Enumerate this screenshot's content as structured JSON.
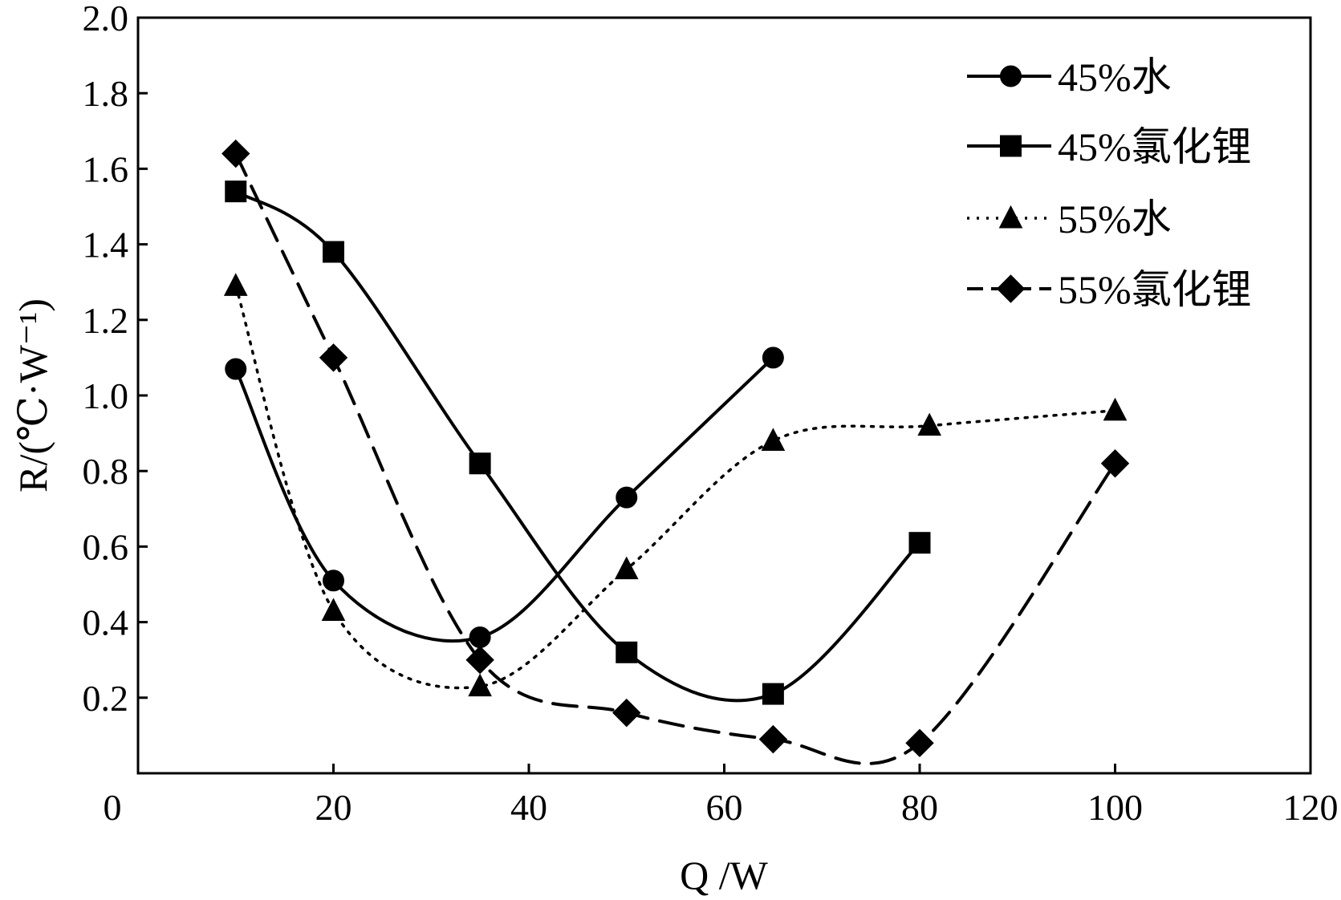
{
  "chart_data": {
    "type": "line",
    "xlabel": "Q /W",
    "ylabel": "R/(℃·W⁻¹)",
    "xlim": [
      0,
      120
    ],
    "ylim": [
      0,
      2.0
    ],
    "x_ticks": [
      0,
      20,
      40,
      60,
      80,
      100,
      120
    ],
    "y_ticks": [
      0.2,
      0.4,
      0.6,
      0.8,
      1.0,
      1.2,
      1.4,
      1.6,
      1.8,
      2.0
    ],
    "x_tick_labels": [
      "0",
      "20",
      "40",
      "60",
      "80",
      "100",
      "120"
    ],
    "y_tick_labels": [
      "0.2",
      "0.4",
      "0.6",
      "0.8",
      "1.0",
      "1.2",
      "1.4",
      "1.6",
      "1.8",
      "2.0"
    ],
    "grid": false,
    "legend_position": "top-right",
    "series": [
      {
        "name": "45%水",
        "marker": "circle",
        "line_style": "solid",
        "color": "#000000",
        "points": [
          [
            10,
            1.07
          ],
          [
            20,
            0.51
          ],
          [
            35,
            0.36
          ],
          [
            50,
            0.73
          ],
          [
            65,
            1.1
          ]
        ]
      },
      {
        "name": "45%氯化锂",
        "marker": "square",
        "line_style": "solid",
        "color": "#000000",
        "points": [
          [
            10,
            1.54
          ],
          [
            20,
            1.38
          ],
          [
            35,
            0.82
          ],
          [
            50,
            0.32
          ],
          [
            65,
            0.21
          ],
          [
            80,
            0.61
          ]
        ]
      },
      {
        "name": "55%水",
        "marker": "triangle",
        "line_style": "dotted",
        "color": "#000000",
        "points": [
          [
            10,
            1.29
          ],
          [
            20,
            0.43
          ],
          [
            35,
            0.23
          ],
          [
            50,
            0.54
          ],
          [
            65,
            0.88
          ],
          [
            81,
            0.92
          ],
          [
            100,
            0.96
          ]
        ]
      },
      {
        "name": "55%氯化锂",
        "marker": "diamond",
        "line_style": "dashed",
        "color": "#000000",
        "points": [
          [
            10,
            1.64
          ],
          [
            20,
            1.1
          ],
          [
            35,
            0.3
          ],
          [
            50,
            0.16
          ],
          [
            65,
            0.09
          ],
          [
            80,
            0.08
          ],
          [
            100,
            0.82
          ]
        ]
      }
    ]
  }
}
